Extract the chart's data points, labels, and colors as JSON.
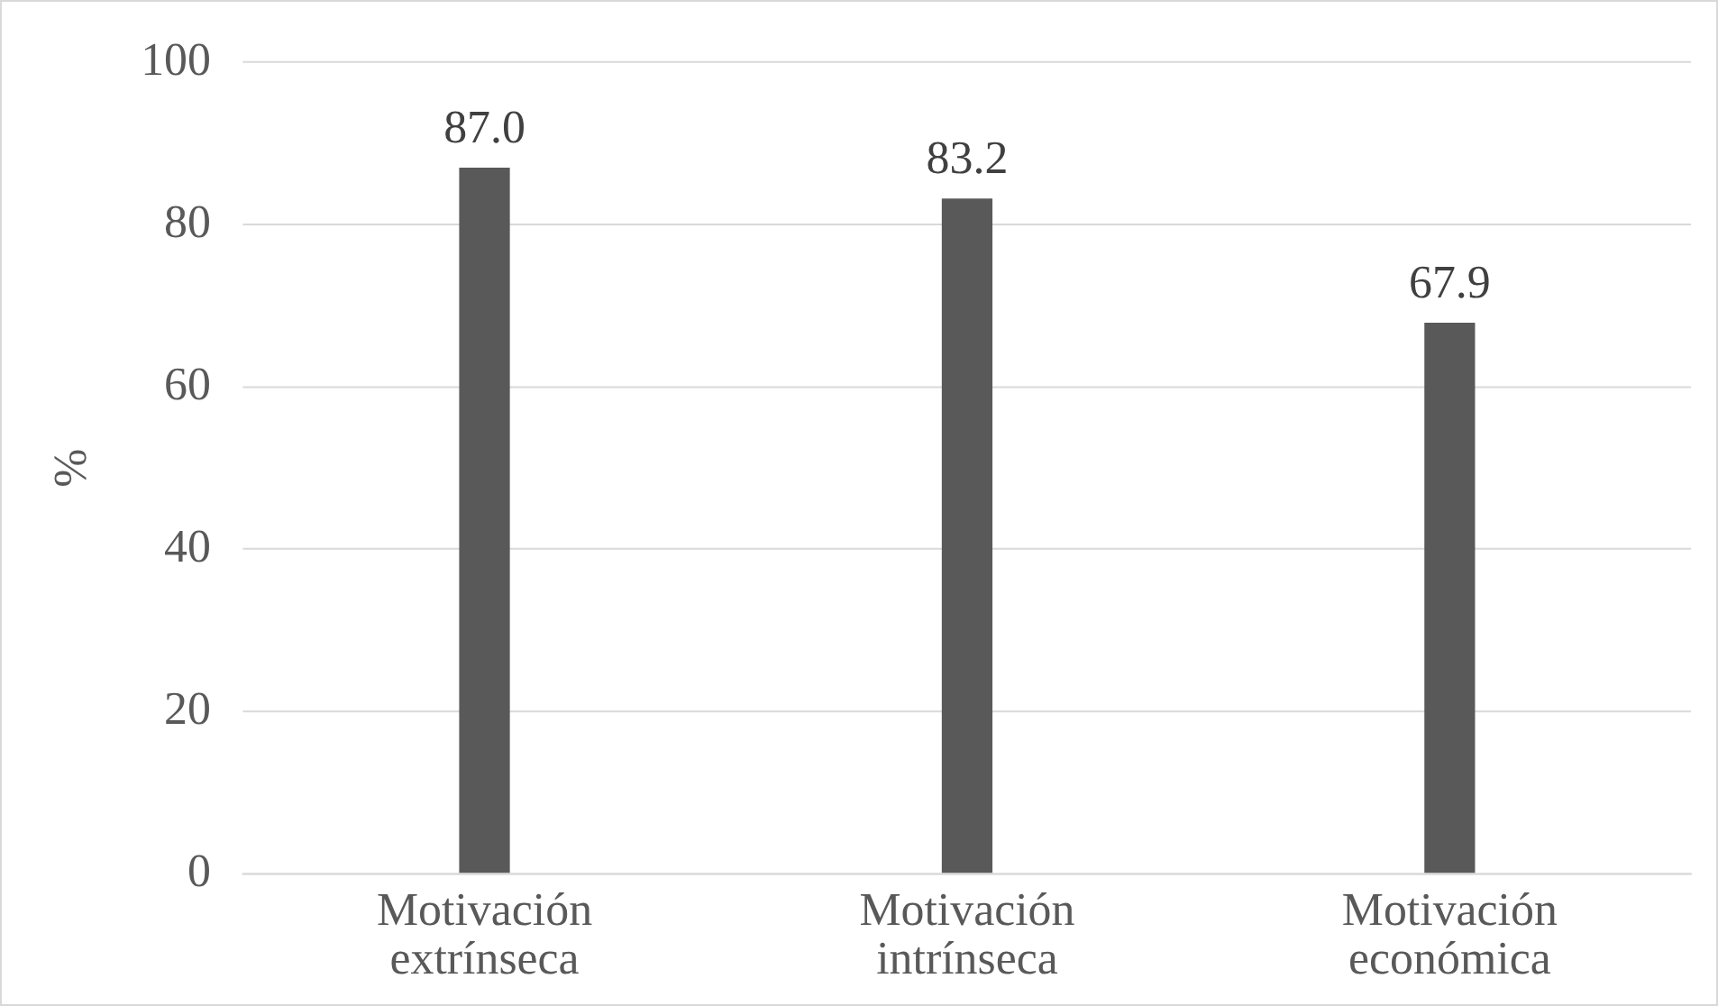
{
  "chart_data": {
    "type": "bar",
    "ylabel": "%",
    "categories": [
      "Motivación extrínseca",
      "Motivación intrínseca",
      "Motivación económica"
    ],
    "values": [
      87.0,
      83.2,
      67.9
    ],
    "value_labels": [
      "87.0",
      "83.2",
      "67.9"
    ],
    "color": "#595959",
    "ylim": [
      0,
      100
    ],
    "yticks": [
      0,
      20,
      40,
      60,
      80,
      100
    ],
    "grid": "y",
    "legend": false
  }
}
